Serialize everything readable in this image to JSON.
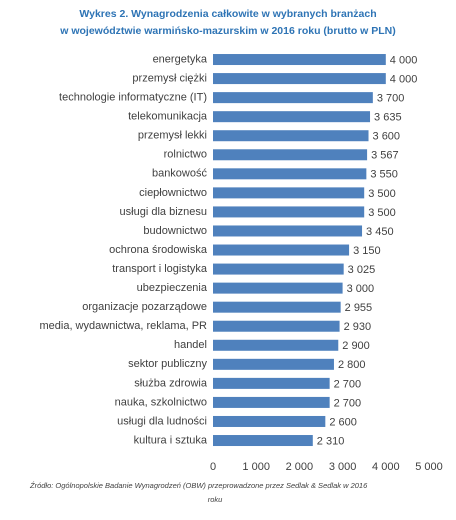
{
  "chart_data": {
    "type": "bar",
    "orientation": "horizontal",
    "title": [
      "Wykres 2. Wynagrodzenia całkowite w wybranych branżach",
      "w województwie warmińsko-mazurskim  w 2016 roku (brutto w PLN)"
    ],
    "categories": [
      "energetyka",
      "przemysł ciężki",
      "technologie informatyczne (IT)",
      "telekomunikacja",
      "przemysł lekki",
      "rolnictwo",
      "bankowość",
      "ciepłownictwo",
      "usługi dla biznesu",
      "budownictwo",
      "ochrona środowiska",
      "transport i logistyka",
      "ubezpieczenia",
      "organizacje pozarządowe",
      "media, wydawnictwa, reklama, PR",
      "handel",
      "sektor publiczny",
      "służba zdrowia",
      "nauka, szkolnictwo",
      "usługi dla ludności",
      "kultura i sztuka"
    ],
    "values": [
      4000,
      4000,
      3700,
      3635,
      3600,
      3567,
      3550,
      3500,
      3500,
      3450,
      3150,
      3025,
      3000,
      2955,
      2930,
      2900,
      2800,
      2700,
      2700,
      2600,
      2310
    ],
    "value_labels": [
      "4 000",
      "4 000",
      "3 700",
      "3 635",
      "3 600",
      "3 567",
      "3 550",
      "3 500",
      "3 500",
      "3 450",
      "3 150",
      "3 025",
      "3 000",
      "2 955",
      "2 930",
      "2 900",
      "2 800",
      "2 700",
      "2 700",
      "2 600",
      "2 310"
    ],
    "color": "#4f81bd",
    "xlim": [
      0,
      5000
    ],
    "xticks": [
      0,
      {
        "value": 1000,
        "label": "1 000"
      },
      {
        "value": 2000,
        "label": "2 000"
      },
      {
        "value": 3000,
        "label": "3 000"
      },
      {
        "value": 4000,
        "label": "4 000"
      },
      {
        "value": 5000,
        "label": "5 000"
      }
    ],
    "grid": false,
    "source": [
      "Źródło: Ogólnopolskie Badanie Wynagrodzeń (OBW) przeprowadzone przez Sedlak & Sedlak w 2016",
      "roku"
    ]
  }
}
